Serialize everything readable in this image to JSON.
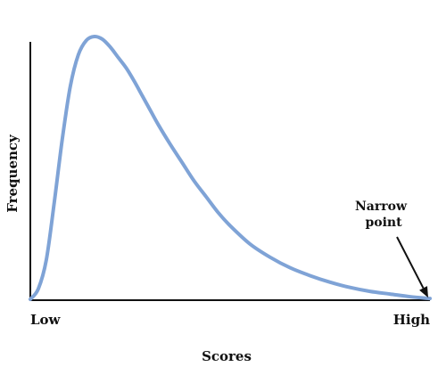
{
  "chart_data": {
    "type": "line",
    "title": "",
    "xlabel": "Scores",
    "ylabel": "Frequency",
    "x_tick_labels": [
      "Low",
      "High"
    ],
    "xlim": [
      0,
      100
    ],
    "ylim": [
      0,
      100
    ],
    "grid": false,
    "series": [
      {
        "color": "#7FA3D6",
        "x": [
          0,
          2,
          4,
          6,
          8,
          10,
          12,
          14,
          16,
          18,
          20,
          22,
          24,
          26,
          28,
          30,
          32,
          35,
          38,
          41,
          44,
          47,
          50,
          55,
          60,
          65,
          70,
          75,
          80,
          85,
          90,
          95,
          100
        ],
        "y": [
          0,
          4,
          15,
          37,
          61,
          81,
          93,
          98.5,
          100,
          99,
          96,
          92,
          88,
          83,
          77.5,
          72,
          66.5,
          59,
          52,
          45,
          39,
          33,
          28,
          21,
          16,
          12,
          9,
          6.5,
          4.5,
          3,
          2,
          1,
          0.3
        ]
      }
    ],
    "annotation": {
      "lines": [
        "Narrow",
        "point"
      ],
      "points_to": {
        "x": 100,
        "y": 0.3
      },
      "arrow_color": "#111111"
    }
  }
}
